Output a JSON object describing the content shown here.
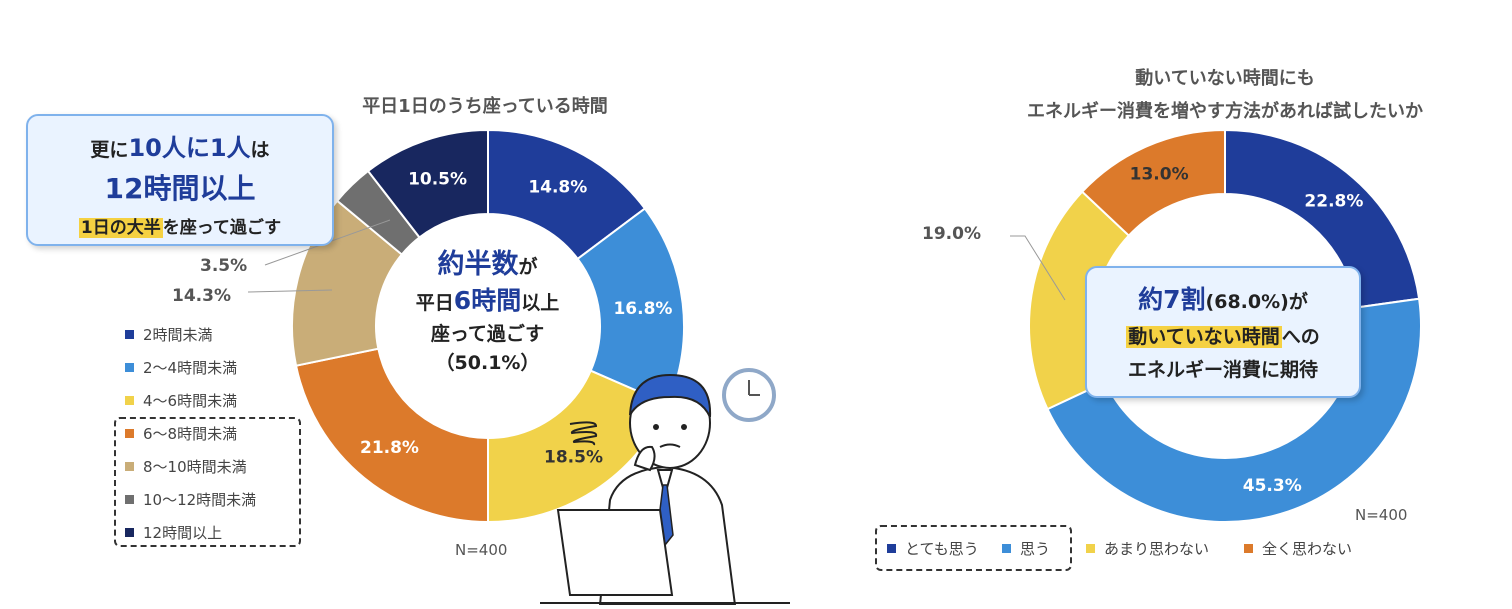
{
  "chart_data": [
    {
      "type": "pie",
      "title": "平日1日のうち座っている時間",
      "categories": [
        "2時間未満",
        "2～4時間未満",
        "4～6時間未満",
        "6～8時間未満",
        "8～10時間未満",
        "10～12時間未満",
        "12時間以上"
      ],
      "values": [
        14.8,
        16.8,
        18.5,
        21.8,
        14.3,
        3.5,
        10.5
      ],
      "labels": [
        "14.8%",
        "16.8%",
        "18.5%",
        "21.8%",
        "14.3%",
        "3.5%",
        "10.5%"
      ],
      "colors": [
        "#1f3d9a",
        "#3d8ed8",
        "#f1d24a",
        "#dc7a2b",
        "#c9ad78",
        "#6f6f6f",
        "#18275f"
      ],
      "n": "N=400",
      "legend_placement": "bottom-left"
    },
    {
      "type": "pie",
      "title": [
        "動いていない時間にも",
        "エネルギー消費を増やす方法があれば試したいか"
      ],
      "categories": [
        "とても思う",
        "思う",
        "あまり思わない",
        "全く思わない"
      ],
      "values": [
        22.8,
        45.3,
        19.0,
        13.0
      ],
      "labels": [
        "22.8%",
        "45.3%",
        "19.0%",
        "13.0%"
      ],
      "colors": [
        "#1f3d9a",
        "#3d8ed8",
        "#f1d24a",
        "#dc7a2b"
      ],
      "n": "N=400",
      "legend_placement": "bottom"
    }
  ],
  "left": {
    "center": {
      "l1a": "約半数",
      "l1b": "が",
      "l2a": "平日",
      "l2b": "6時間",
      "l2c": "以上",
      "l3": "座って過ごす",
      "l4": "（50.1%）"
    },
    "callout": {
      "l1a": "更に",
      "l1b": "10人に1人",
      "l1c": "は",
      "l2": "12時間以上",
      "l3a": "1日の大半",
      "l3b": "を座って過ごす"
    }
  },
  "right": {
    "callout": {
      "l1a": "約7割",
      "l1b": "(68.0%)が",
      "l2a": "動いていない時間",
      "l2b": "への",
      "l3": "エネルギー消費に期待"
    }
  },
  "icons": [
    "clock-icon",
    "stress-scribble-icon",
    "businessman-illustration",
    "laptop-icon"
  ]
}
